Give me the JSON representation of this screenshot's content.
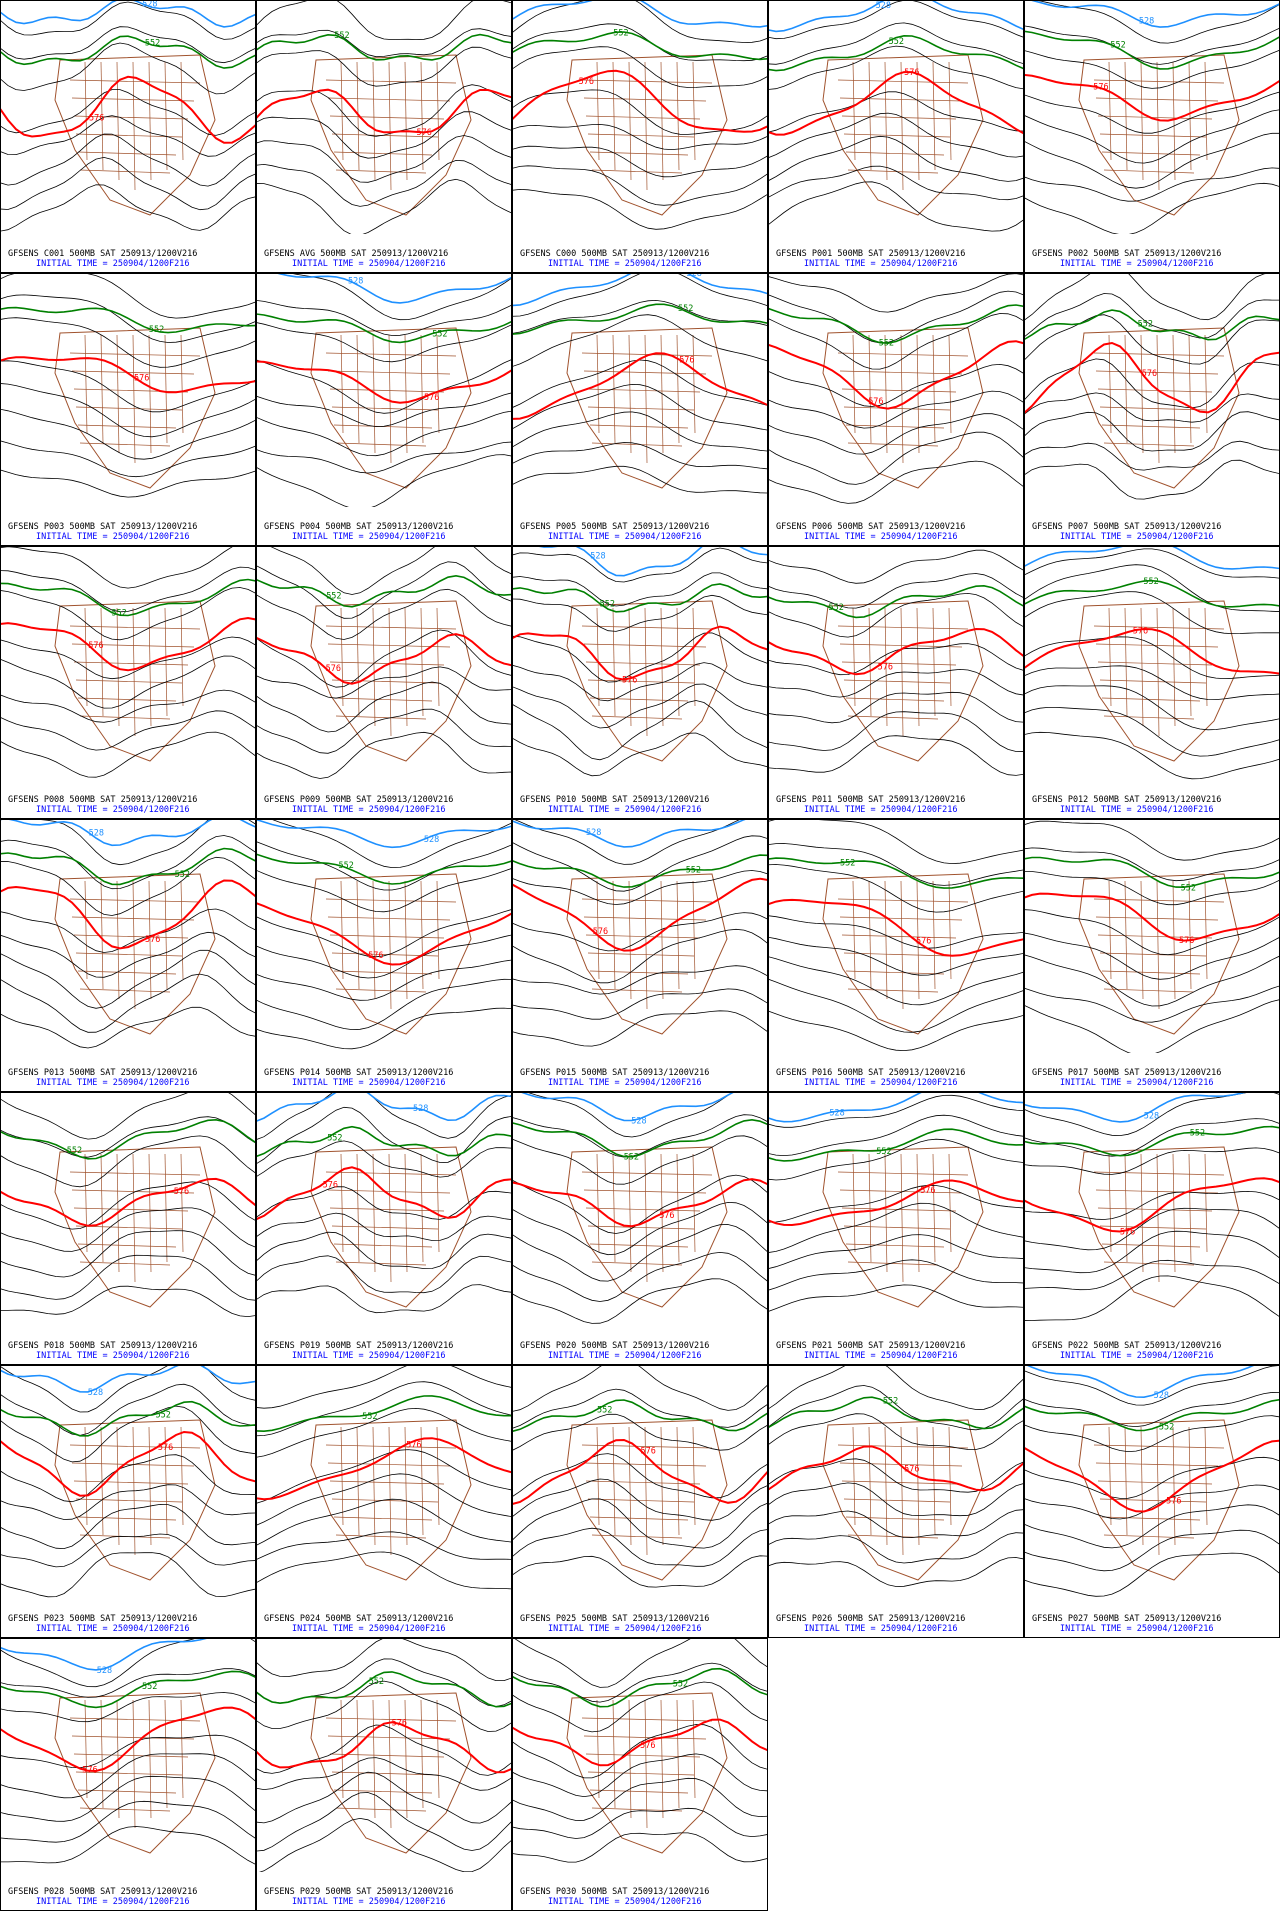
{
  "contours": [
    {
      "label": "576",
      "color": "#ff0000"
    },
    {
      "label": "552",
      "color": "#008000"
    },
    {
      "label": "528",
      "color": "#1e90ff"
    }
  ],
  "panels": [
    {
      "title": "GFSENS C001 500MB SAT 250913/1200V216",
      "initial_time": "INITIAL TIME = 250904/1200F216"
    },
    {
      "title": "GFSENS AVG 500MB SAT 250913/1200V216",
      "initial_time": "INITIAL TIME = 250904/1200F216"
    },
    {
      "title": "GFSENS C000 500MB SAT 250913/1200V216",
      "initial_time": "INITIAL TIME = 250904/1200F216"
    },
    {
      "title": "GFSENS P001 500MB SAT 250913/1200V216",
      "initial_time": "INITIAL TIME = 250904/1200F216"
    },
    {
      "title": "GFSENS P002 500MB SAT 250913/1200V216",
      "initial_time": "INITIAL TIME = 250904/1200F216"
    },
    {
      "title": "GFSENS P003 500MB SAT 250913/1200V216",
      "initial_time": "INITIAL TIME = 250904/1200F216"
    },
    {
      "title": "GFSENS P004 500MB SAT 250913/1200V216",
      "initial_time": "INITIAL TIME = 250904/1200F216"
    },
    {
      "title": "GFSENS P005 500MB SAT 250913/1200V216",
      "initial_time": "INITIAL TIME = 250904/1200F216"
    },
    {
      "title": "GFSENS P006 500MB SAT 250913/1200V216",
      "initial_time": "INITIAL TIME = 250904/1200F216"
    },
    {
      "title": "GFSENS P007 500MB SAT 250913/1200V216",
      "initial_time": "INITIAL TIME = 250904/1200F216"
    },
    {
      "title": "GFSENS P008 500MB SAT 250913/1200V216",
      "initial_time": "INITIAL TIME = 250904/1200F216"
    },
    {
      "title": "GFSENS P009 500MB SAT 250913/1200V216",
      "initial_time": "INITIAL TIME = 250904/1200F216"
    },
    {
      "title": "GFSENS P010 500MB SAT 250913/1200V216",
      "initial_time": "INITIAL TIME = 250904/1200F216"
    },
    {
      "title": "GFSENS P011 500MB SAT 250913/1200V216",
      "initial_time": "INITIAL TIME = 250904/1200F216"
    },
    {
      "title": "GFSENS P012 500MB SAT 250913/1200V216",
      "initial_time": "INITIAL TIME = 250904/1200F216"
    },
    {
      "title": "GFSENS P013 500MB SAT 250913/1200V216",
      "initial_time": "INITIAL TIME = 250904/1200F216"
    },
    {
      "title": "GFSENS P014 500MB SAT 250913/1200V216",
      "initial_time": "INITIAL TIME = 250904/1200F216"
    },
    {
      "title": "GFSENS P015 500MB SAT 250913/1200V216",
      "initial_time": "INITIAL TIME = 250904/1200F216"
    },
    {
      "title": "GFSENS P016 500MB SAT 250913/1200V216",
      "initial_time": "INITIAL TIME = 250904/1200F216"
    },
    {
      "title": "GFSENS P017 500MB SAT 250913/1200V216",
      "initial_time": "INITIAL TIME = 250904/1200F216"
    },
    {
      "title": "GFSENS P018 500MB SAT 250913/1200V216",
      "initial_time": "INITIAL TIME = 250904/1200F216"
    },
    {
      "title": "GFSENS P019 500MB SAT 250913/1200V216",
      "initial_time": "INITIAL TIME = 250904/1200F216"
    },
    {
      "title": "GFSENS P020 500MB SAT 250913/1200V216",
      "initial_time": "INITIAL TIME = 250904/1200F216"
    },
    {
      "title": "GFSENS P021 500MB SAT 250913/1200V216",
      "initial_time": "INITIAL TIME = 250904/1200F216"
    },
    {
      "title": "GFSENS P022 500MB SAT 250913/1200V216",
      "initial_time": "INITIAL TIME = 250904/1200F216"
    },
    {
      "title": "GFSENS P023 500MB SAT 250913/1200V216",
      "initial_time": "INITIAL TIME = 250904/1200F216"
    },
    {
      "title": "GFSENS P024 500MB SAT 250913/1200V216",
      "initial_time": "INITIAL TIME = 250904/1200F216"
    },
    {
      "title": "GFSENS P025 500MB SAT 250913/1200V216",
      "initial_time": "INITIAL TIME = 250904/1200F216"
    },
    {
      "title": "GFSENS P026 500MB SAT 250913/1200V216",
      "initial_time": "INITIAL TIME = 250904/1200F216"
    },
    {
      "title": "GFSENS P027 500MB SAT 250913/1200V216",
      "initial_time": "INITIAL TIME = 250904/1200F216"
    },
    {
      "title": "GFSENS P028 500MB SAT 250913/1200V216",
      "initial_time": "INITIAL TIME = 250904/1200F216"
    },
    {
      "title": "GFSENS P029 500MB SAT 250913/1200V216",
      "initial_time": "INITIAL TIME = 250904/1200F216"
    },
    {
      "title": "GFSENS P030 500MB SAT 250913/1200V216",
      "initial_time": "INITIAL TIME = 250904/1200F216"
    }
  ]
}
